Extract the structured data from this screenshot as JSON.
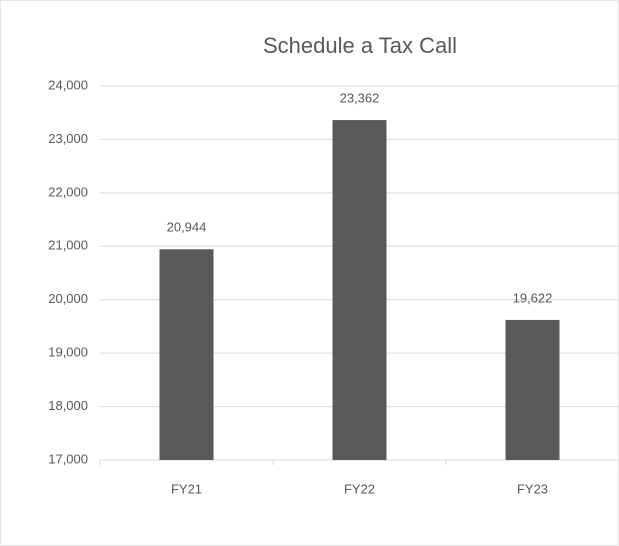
{
  "chart_data": {
    "type": "bar",
    "title": "Schedule a Tax Call",
    "categories": [
      "FY21",
      "FY22",
      "FY23"
    ],
    "values": [
      20944,
      23362,
      19622
    ],
    "value_labels": [
      "20,944",
      "23,362",
      "19,622"
    ],
    "color": "#595959",
    "ylim": [
      17000,
      24000
    ],
    "yticks": [
      {
        "value": 17000,
        "label": "17,000"
      },
      {
        "value": 18000,
        "label": "18,000"
      },
      {
        "value": 19000,
        "label": "19,000"
      },
      {
        "value": 20000,
        "label": "20,000"
      },
      {
        "value": 21000,
        "label": "21,000"
      },
      {
        "value": 22000,
        "label": "22,000"
      },
      {
        "value": 23000,
        "label": "23,000"
      },
      {
        "value": 24000,
        "label": "24,000"
      }
    ],
    "grid": true
  }
}
